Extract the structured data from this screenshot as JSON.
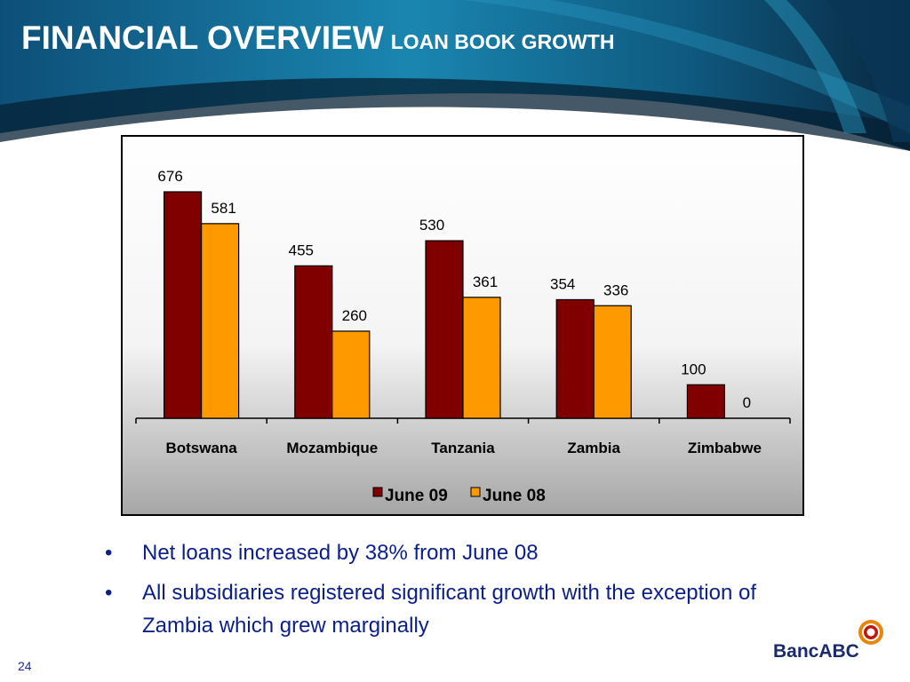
{
  "header": {
    "title": "FINANCIAL OVERVIEW",
    "subtitle": "LOAN BOOK GROWTH"
  },
  "chart_data": {
    "type": "bar",
    "categories": [
      "Botswana",
      "Mozambique",
      "Tanzania",
      "Zambia",
      "Zimbabwe"
    ],
    "series": [
      {
        "name": "June 09",
        "values": [
          676,
          455,
          530,
          354,
          100
        ],
        "color": "#800000"
      },
      {
        "name": "June 08",
        "values": [
          581,
          260,
          361,
          336,
          0
        ],
        "color": "#ff9900"
      }
    ],
    "ylim": [
      0,
      720
    ],
    "grid": false,
    "legend": "bottom"
  },
  "bullets": [
    "Net loans increased by 38% from June 08",
    "All subsidiaries registered significant growth with the exception of Zambia which grew marginally"
  ],
  "bullet_symbol": "•",
  "page_number": "24",
  "logo": {
    "text": "BancABC"
  },
  "colors": {
    "header_dark": "#0a2a4a",
    "header_blue": "#0f6f9a",
    "title_text": "#ffffff",
    "bullet_text": "#0b1f8a"
  }
}
